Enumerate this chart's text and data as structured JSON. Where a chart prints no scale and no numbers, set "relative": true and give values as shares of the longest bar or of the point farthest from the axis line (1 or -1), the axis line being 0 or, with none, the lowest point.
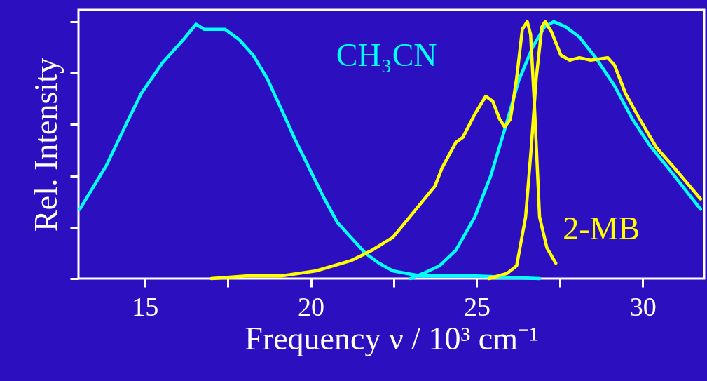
{
  "chart_data": {
    "type": "line",
    "relative": true,
    "xlabel": "Frequency ν / 10³ cm⁻¹",
    "ylabel": "Rel. Intensity",
    "xlim": [
      13.0,
      31.85
    ],
    "xticks": [
      15,
      {
        "value": 17.5,
        "label": null
      },
      20,
      {
        "value": 22.5,
        "label": null
      },
      25,
      {
        "value": 27.5,
        "label": null
      },
      30
    ],
    "grid": false,
    "marker": "none",
    "line_style": "solid",
    "series": [
      {
        "name": "CH₃CN",
        "color": "#00ffff",
        "x": [
          13.04,
          13.84,
          14.47,
          14.89,
          15.53,
          16.16,
          16.54,
          16.79,
          17.0,
          17.42,
          17.84,
          18.26,
          18.68,
          19.11,
          19.53,
          19.95,
          20.37,
          20.79,
          21.21,
          21.63,
          22.05,
          22.47,
          22.89,
          23.32,
          25.0,
          26.89
        ],
        "values": [
          0.27,
          0.44,
          0.61,
          0.72,
          0.84,
          0.93,
          0.99,
          0.97,
          0.97,
          0.97,
          0.93,
          0.87,
          0.78,
          0.66,
          0.54,
          0.43,
          0.32,
          0.22,
          0.16,
          0.1,
          0.06,
          0.03,
          0.02,
          0.01,
          0.01,
          0.0
        ]
      },
      {
        "color": "#00ffff",
        "x": [
          23.0,
          23.38,
          23.88,
          24.37,
          24.94,
          25.42,
          25.84,
          26.26,
          26.68,
          27.04,
          27.32,
          27.67,
          28.09,
          28.58,
          29.15,
          29.69,
          30.2,
          30.89,
          31.74
        ],
        "values": [
          0.0,
          0.02,
          0.05,
          0.11,
          0.24,
          0.4,
          0.58,
          0.77,
          0.9,
          0.98,
          1.0,
          0.98,
          0.94,
          0.86,
          0.75,
          0.62,
          0.52,
          0.41,
          0.27
        ]
      },
      {
        "name": "2-MB",
        "color": "#ffff00",
        "x": [
          17.0,
          18.05,
          19.11,
          20.16,
          21.21,
          21.84,
          22.47,
          23.17,
          23.74,
          23.95,
          24.37,
          24.58,
          24.94,
          25.27,
          25.48,
          25.69,
          25.84,
          26.01,
          26.2,
          26.37,
          26.52,
          26.62,
          26.73,
          26.89,
          27.11,
          27.38
        ],
        "values": [
          0.0,
          0.01,
          0.01,
          0.03,
          0.07,
          0.11,
          0.16,
          0.27,
          0.36,
          0.43,
          0.53,
          0.55,
          0.64,
          0.71,
          0.69,
          0.62,
          0.59,
          0.62,
          0.78,
          0.97,
          1.0,
          0.95,
          0.69,
          0.24,
          0.12,
          0.06
        ]
      },
      {
        "color": "#ffff00",
        "x": [
          25.36,
          25.91,
          26.2,
          26.47,
          26.64,
          26.79,
          26.96,
          27.06,
          27.25,
          27.53,
          27.8,
          28.09,
          28.43,
          28.94,
          29.15,
          29.48,
          29.91,
          30.41,
          30.89,
          31.74
        ],
        "values": [
          0.0,
          0.02,
          0.05,
          0.24,
          0.51,
          0.78,
          0.98,
          1.0,
          0.96,
          0.87,
          0.85,
          0.86,
          0.85,
          0.86,
          0.83,
          0.72,
          0.62,
          0.51,
          0.44,
          0.31
        ]
      }
    ]
  }
}
